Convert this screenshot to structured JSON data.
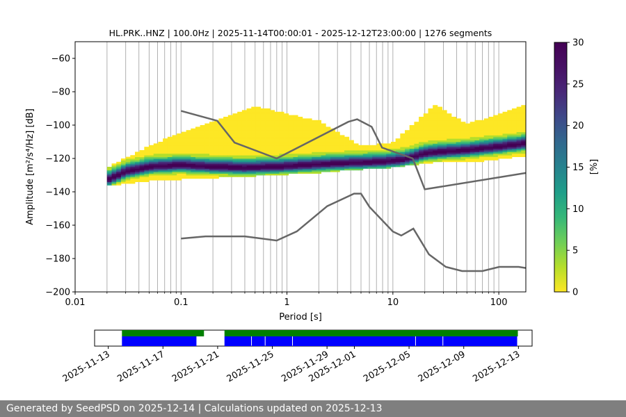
{
  "chart_data": {
    "type": "heatmap",
    "title": "HL.PRK..HNZ | 100.0Hz | 2025-11-14T00:00:01 - 2025-12-12T23:00:00 | 1276 segments",
    "xlabel": "Period [s]",
    "ylabel": "Amplitude [m²/s⁴/Hz] [dB]",
    "xscale": "log",
    "xlim": [
      0.01,
      180
    ],
    "ylim": [
      -200,
      -50
    ],
    "x_ticks": [
      "0.01",
      "0.1",
      "1",
      "10",
      "100"
    ],
    "y_ticks": [
      "−200",
      "−180",
      "−160",
      "−140",
      "−120",
      "−100",
      "−80",
      "−60"
    ],
    "grid": "vertical",
    "colorbar": {
      "label": "[%]",
      "range": [
        0,
        30
      ],
      "ticks": [
        "0",
        "5",
        "10",
        "15",
        "20",
        "25",
        "30"
      ],
      "colormap": "viridis_r"
    },
    "psd_mode": {
      "period": [
        0.02,
        0.03,
        0.05,
        0.1,
        0.2,
        0.4,
        0.8,
        1.5,
        3,
        5,
        8,
        12,
        16,
        20,
        30,
        50,
        100,
        180
      ],
      "db": [
        -133,
        -128,
        -125,
        -124,
        -125,
        -125.5,
        -125,
        -124,
        -123,
        -122.5,
        -122,
        -121,
        -119,
        -117,
        -116,
        -115,
        -113,
        -111
      ]
    },
    "psd_spread_db": [
      {
        "period": 0.02,
        "low": -136,
        "high": -126
      },
      {
        "period": 0.05,
        "low": -133,
        "high": -113
      },
      {
        "period": 0.1,
        "low": -132,
        "high": -105
      },
      {
        "period": 0.5,
        "low": -130,
        "high": -89
      },
      {
        "period": 2,
        "low": -128,
        "high": -98
      },
      {
        "period": 5,
        "low": -126,
        "high": -113
      },
      {
        "period": 10,
        "low": -125,
        "high": -111
      },
      {
        "period": 25,
        "low": -122,
        "high": -88
      },
      {
        "period": 50,
        "low": -122,
        "high": -100
      },
      {
        "period": 180,
        "low": -118,
        "high": -88
      }
    ],
    "nhnm": {
      "period": [
        0.1,
        0.22,
        0.32,
        0.8,
        3.8,
        4.6,
        6.3,
        7.9,
        15.4,
        20,
        180
      ],
      "db": [
        -91.5,
        -97.4,
        -110.5,
        -120,
        -98,
        -96.5,
        -101,
        -113.5,
        -120,
        -138.5,
        -128.7
      ]
    },
    "nlnm": {
      "period": [
        0.1,
        0.17,
        0.4,
        0.8,
        1.24,
        2.4,
        4.3,
        5,
        6,
        10,
        12,
        15.6,
        21.9,
        31.6,
        45,
        70,
        101,
        154,
        180
      ],
      "db": [
        -168,
        -166.7,
        -166.7,
        -169.2,
        -163.7,
        -148.6,
        -141.1,
        -141.1,
        -149,
        -163.8,
        -166.2,
        -162.1,
        -177.5,
        -185,
        -187.5,
        -187.5,
        -185,
        -185,
        -185.7
      ]
    },
    "availability": {
      "date_ticks": [
        "2025-11-13",
        "2025-11-17",
        "2025-11-21",
        "2025-11-25",
        "2025-11-29",
        "2025-12-01",
        "2025-12-05",
        "2025-12-09",
        "2025-12-13"
      ],
      "range": [
        "2025-11-12",
        "2025-12-14"
      ],
      "data_segments": [
        [
          "2025-11-14",
          "2025-11-20"
        ],
        [
          "2025-11-21T12:00",
          "2025-12-12T23:00"
        ]
      ],
      "psd_segments": [
        [
          "2025-11-14",
          "2025-11-19T12:00"
        ],
        [
          "2025-11-21T12:00",
          "2025-11-23T12:00"
        ],
        [
          "2025-11-23T12:00",
          "2025-11-24T12:00"
        ],
        [
          "2025-11-24T12:00",
          "2025-11-26T12:00"
        ],
        [
          "2025-11-26T12:00",
          "2025-12-05T12:00"
        ],
        [
          "2025-12-05T12:00",
          "2025-12-07T12:00"
        ],
        [
          "2025-12-07T12:00",
          "2025-12-12T23:00"
        ]
      ],
      "data_color": "#008000",
      "psd_color": "#0000ff"
    }
  },
  "footer": {
    "text": "Generated by SeedPSD on 2025-12-14 | Calculations updated on 2025-12-13"
  },
  "colors": {
    "model_line": "#666666",
    "grid": "#b0b0b0",
    "footer_bg": "#7f7f7f"
  }
}
